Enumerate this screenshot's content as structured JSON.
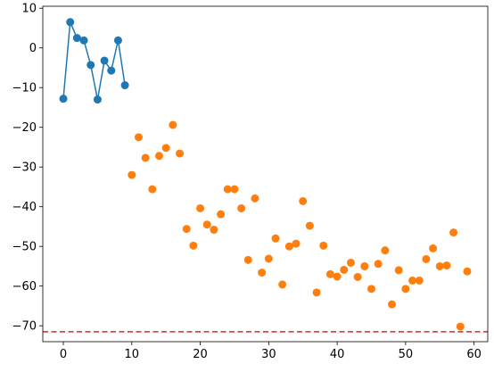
{
  "chart_data": {
    "type": "scatter",
    "title": "",
    "xlabel": "",
    "ylabel": "",
    "xlim": [
      -3,
      62
    ],
    "ylim": [
      -74,
      10.5
    ],
    "x_ticks": [
      0,
      10,
      20,
      30,
      40,
      50,
      60
    ],
    "y_ticks": [
      10,
      0,
      -10,
      -20,
      -30,
      -40,
      -50,
      -60,
      -70
    ],
    "grid": false,
    "legend": "none",
    "colors": {
      "series1": "#1f77b4",
      "series2": "#ff7f0e",
      "threshold": "#d62728"
    },
    "series": [
      {
        "style": "line-with-markers",
        "color": "#1f77b4",
        "x": [
          0,
          1,
          2,
          3,
          4,
          5,
          6,
          7,
          8,
          9
        ],
        "y": [
          -12.8,
          6.5,
          2.5,
          1.9,
          -4.3,
          -13.0,
          -3.2,
          -5.7,
          1.9,
          -9.4
        ]
      },
      {
        "style": "markers",
        "color": "#ff7f0e",
        "x": [
          10,
          11,
          12,
          13,
          14,
          15,
          16,
          17,
          18,
          19,
          20,
          21,
          22,
          23,
          24,
          25,
          26,
          27,
          28,
          29,
          30,
          31,
          32,
          33,
          34,
          35,
          36,
          37,
          38,
          39,
          40,
          41,
          42,
          43,
          44,
          45,
          46,
          47,
          48,
          49,
          50,
          51,
          52,
          53,
          54,
          55,
          56,
          57,
          58,
          59
        ],
        "y": [
          -32.0,
          -22.5,
          -27.7,
          -35.6,
          -27.2,
          -25.2,
          -19.4,
          -26.6,
          -45.6,
          -49.8,
          -40.4,
          -44.5,
          -45.8,
          -41.9,
          -35.6,
          -35.6,
          -40.4,
          -53.4,
          -37.9,
          -56.6,
          -53.1,
          -48.0,
          -59.6,
          -50.0,
          -49.3,
          -38.6,
          -44.8,
          -61.6,
          -49.8,
          -57.0,
          -57.6,
          -55.9,
          -54.1,
          -57.7,
          -55.0,
          -60.7,
          -54.4,
          -51.0,
          -64.6,
          -56.0,
          -60.7,
          -58.6,
          -58.6,
          -53.2,
          -50.5,
          -55.0,
          -54.8,
          -46.5,
          -70.2,
          -56.3
        ]
      }
    ],
    "reference_lines": [
      {
        "orientation": "horizontal",
        "y": -71.5,
        "style": "dashed",
        "color": "#d62728"
      }
    ]
  }
}
